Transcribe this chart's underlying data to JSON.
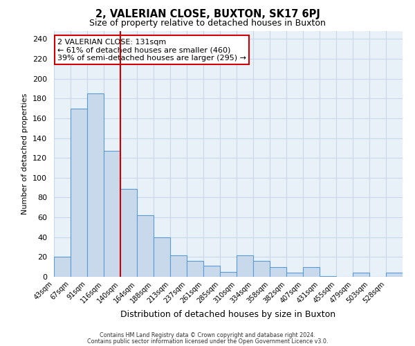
{
  "title": "2, VALERIAN CLOSE, BUXTON, SK17 6PJ",
  "subtitle": "Size of property relative to detached houses in Buxton",
  "xlabel": "Distribution of detached houses by size in Buxton",
  "ylabel": "Number of detached properties",
  "bin_labels": [
    "43sqm",
    "67sqm",
    "91sqm",
    "116sqm",
    "140sqm",
    "164sqm",
    "188sqm",
    "213sqm",
    "237sqm",
    "261sqm",
    "285sqm",
    "310sqm",
    "334sqm",
    "358sqm",
    "382sqm",
    "407sqm",
    "431sqm",
    "455sqm",
    "479sqm",
    "503sqm",
    "528sqm"
  ],
  "bar_values": [
    20,
    170,
    185,
    127,
    89,
    62,
    40,
    22,
    16,
    11,
    5,
    22,
    16,
    10,
    4,
    10,
    1,
    0,
    4,
    0,
    4
  ],
  "bar_color": "#c9d9ec",
  "bar_edge_color": "#5b9bd5",
  "vline_bin_index": 4,
  "vline_color": "#cc0000",
  "annotation_line1": "2 VALERIAN CLOSE: 131sqm",
  "annotation_line2": "← 61% of detached houses are smaller (460)",
  "annotation_line3": "39% of semi-detached houses are larger (295) →",
  "annotation_box_color": "#ffffff",
  "annotation_box_edge": "#cc0000",
  "ylim": [
    0,
    248
  ],
  "yticks": [
    0,
    20,
    40,
    60,
    80,
    100,
    120,
    140,
    160,
    180,
    200,
    220,
    240
  ],
  "grid_color": "#c8d8e8",
  "footer1": "Contains HM Land Registry data © Crown copyright and database right 2024.",
  "footer2": "Contains public sector information licensed under the Open Government Licence v3.0.",
  "num_bins": 21,
  "figsize": [
    6.0,
    5.0
  ],
  "dpi": 100
}
